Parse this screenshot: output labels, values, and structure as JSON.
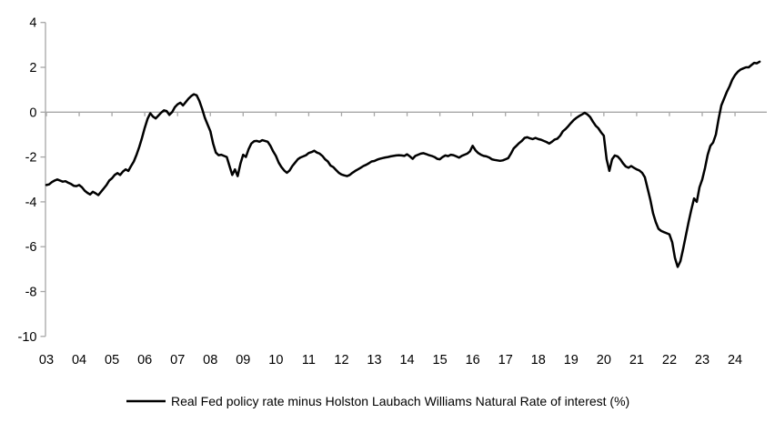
{
  "chart_data": {
    "type": "line",
    "title": "",
    "legend_position": "bottom-center",
    "grid": false,
    "zero_baseline": true,
    "colors": {
      "line": "#000000",
      "axis": "#a6a6a6",
      "text": "#000000",
      "background": "#ffffff"
    },
    "x_axis": {
      "first_year": 2003,
      "tick_labels": [
        "03",
        "04",
        "05",
        "06",
        "07",
        "08",
        "09",
        "10",
        "11",
        "12",
        "13",
        "14",
        "15",
        "16",
        "17",
        "18",
        "19",
        "20",
        "21",
        "22",
        "23",
        "24"
      ]
    },
    "y_axis": {
      "min": -10,
      "max": 4,
      "ticks": [
        4,
        2,
        0,
        -2,
        -4,
        -6,
        -8,
        -10
      ],
      "tick_labels": [
        "4",
        "2",
        "0",
        "-2",
        "-4",
        "-6",
        "-8",
        "-10"
      ]
    },
    "series": [
      {
        "name": "Real Fed policy rate minus Holston Laubach Williams Natural Rate of interest (%)",
        "start_year": 2003,
        "frequency": "monthly",
        "values": [
          -3.25,
          -3.22,
          -3.12,
          -3.05,
          -3.0,
          -3.05,
          -3.1,
          -3.08,
          -3.15,
          -3.2,
          -3.28,
          -3.3,
          -3.25,
          -3.35,
          -3.5,
          -3.6,
          -3.67,
          -3.55,
          -3.62,
          -3.7,
          -3.55,
          -3.4,
          -3.25,
          -3.05,
          -2.95,
          -2.8,
          -2.72,
          -2.8,
          -2.65,
          -2.55,
          -2.62,
          -2.4,
          -2.2,
          -1.9,
          -1.55,
          -1.15,
          -0.7,
          -0.3,
          -0.05,
          -0.2,
          -0.28,
          -0.15,
          -0.02,
          0.08,
          0.05,
          -0.12,
          0.0,
          0.22,
          0.35,
          0.42,
          0.3,
          0.45,
          0.6,
          0.72,
          0.8,
          0.75,
          0.5,
          0.15,
          -0.25,
          -0.55,
          -0.85,
          -1.4,
          -1.8,
          -1.92,
          -1.9,
          -1.95,
          -2.0,
          -2.4,
          -2.8,
          -2.55,
          -2.85,
          -2.3,
          -1.9,
          -2.0,
          -1.65,
          -1.4,
          -1.3,
          -1.28,
          -1.32,
          -1.25,
          -1.28,
          -1.32,
          -1.5,
          -1.75,
          -1.95,
          -2.25,
          -2.45,
          -2.6,
          -2.7,
          -2.6,
          -2.4,
          -2.25,
          -2.1,
          -2.02,
          -1.97,
          -1.92,
          -1.82,
          -1.78,
          -1.72,
          -1.8,
          -1.85,
          -1.95,
          -2.1,
          -2.2,
          -2.38,
          -2.45,
          -2.58,
          -2.7,
          -2.78,
          -2.82,
          -2.85,
          -2.8,
          -2.7,
          -2.62,
          -2.55,
          -2.48,
          -2.4,
          -2.35,
          -2.28,
          -2.2,
          -2.18,
          -2.12,
          -2.08,
          -2.05,
          -2.02,
          -2.0,
          -1.97,
          -1.95,
          -1.93,
          -1.92,
          -1.93,
          -1.95,
          -1.88,
          -1.97,
          -2.08,
          -1.95,
          -1.9,
          -1.85,
          -1.83,
          -1.87,
          -1.92,
          -1.95,
          -2.0,
          -2.08,
          -2.1,
          -2.0,
          -1.93,
          -1.96,
          -1.9,
          -1.92,
          -1.97,
          -2.03,
          -1.95,
          -1.9,
          -1.85,
          -1.75,
          -1.5,
          -1.7,
          -1.82,
          -1.9,
          -1.95,
          -1.97,
          -2.02,
          -2.1,
          -2.13,
          -2.15,
          -2.17,
          -2.15,
          -2.1,
          -2.05,
          -1.85,
          -1.62,
          -1.5,
          -1.38,
          -1.28,
          -1.15,
          -1.12,
          -1.17,
          -1.2,
          -1.15,
          -1.2,
          -1.23,
          -1.28,
          -1.33,
          -1.4,
          -1.32,
          -1.22,
          -1.18,
          -1.05,
          -0.85,
          -0.75,
          -0.62,
          -0.48,
          -0.35,
          -0.25,
          -0.17,
          -0.1,
          -0.03,
          -0.1,
          -0.22,
          -0.42,
          -0.6,
          -0.72,
          -0.9,
          -1.05,
          -2.1,
          -2.62,
          -2.1,
          -1.93,
          -1.97,
          -2.1,
          -2.28,
          -2.42,
          -2.48,
          -2.4,
          -2.48,
          -2.55,
          -2.6,
          -2.7,
          -2.9,
          -3.4,
          -3.9,
          -4.5,
          -4.9,
          -5.2,
          -5.3,
          -5.35,
          -5.4,
          -5.45,
          -5.8,
          -6.5,
          -6.9,
          -6.65,
          -6.1,
          -5.5,
          -4.9,
          -4.35,
          -3.85,
          -4.0,
          -3.35,
          -3.0,
          -2.5,
          -1.9,
          -1.5,
          -1.35,
          -1.0,
          -0.3,
          0.3,
          0.6,
          0.9,
          1.15,
          1.45,
          1.65,
          1.8,
          1.9,
          1.95,
          2.0,
          2.0,
          2.1,
          2.2,
          2.18,
          2.25
        ]
      }
    ]
  }
}
